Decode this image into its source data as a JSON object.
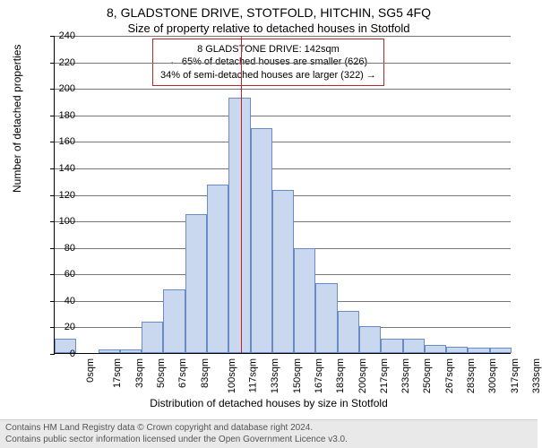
{
  "title": "8, GLADSTONE DRIVE, STOTFOLD, HITCHIN, SG5 4FQ",
  "subtitle": "Size of property relative to detached houses in Stotfold",
  "annotation": {
    "line1": "8 GLADSTONE DRIVE: 142sqm",
    "line2": "← 65% of detached houses are smaller (626)",
    "line3": "34% of semi-detached houses are larger (322) →",
    "border_color": "#b02a2a"
  },
  "yaxis": {
    "title": "Number of detached properties",
    "min": 0,
    "max": 240,
    "step": 20,
    "ticks": [
      0,
      20,
      40,
      60,
      80,
      100,
      120,
      140,
      160,
      180,
      200,
      220,
      240
    ],
    "grid_color": "#777777"
  },
  "xaxis": {
    "title": "Distribution of detached houses by size in Stotfold",
    "labels": [
      "0sqm",
      "17sqm",
      "33sqm",
      "50sqm",
      "67sqm",
      "83sqm",
      "100sqm",
      "117sqm",
      "133sqm",
      "150sqm",
      "167sqm",
      "183sqm",
      "200sqm",
      "217sqm",
      "233sqm",
      "250sqm",
      "267sqm",
      "283sqm",
      "300sqm",
      "317sqm",
      "333sqm"
    ]
  },
  "chart": {
    "type": "histogram",
    "bar_color": "#c9d8ef",
    "bar_border": "#6a8bc5",
    "background_color": "#ffffff",
    "values": [
      11,
      0,
      3,
      3,
      24,
      48,
      105,
      127,
      193,
      170,
      123,
      79,
      53,
      32,
      20,
      11,
      11,
      6,
      5,
      4,
      4
    ],
    "reference_line": {
      "x_position": 8.55,
      "color": "#c62020"
    }
  },
  "footer": {
    "line1": "Contains HM Land Registry data © Crown copyright and database right 2024.",
    "line2": "Contains public sector information licensed under the Open Government Licence v3.0.",
    "background": "#e9e9e9"
  }
}
